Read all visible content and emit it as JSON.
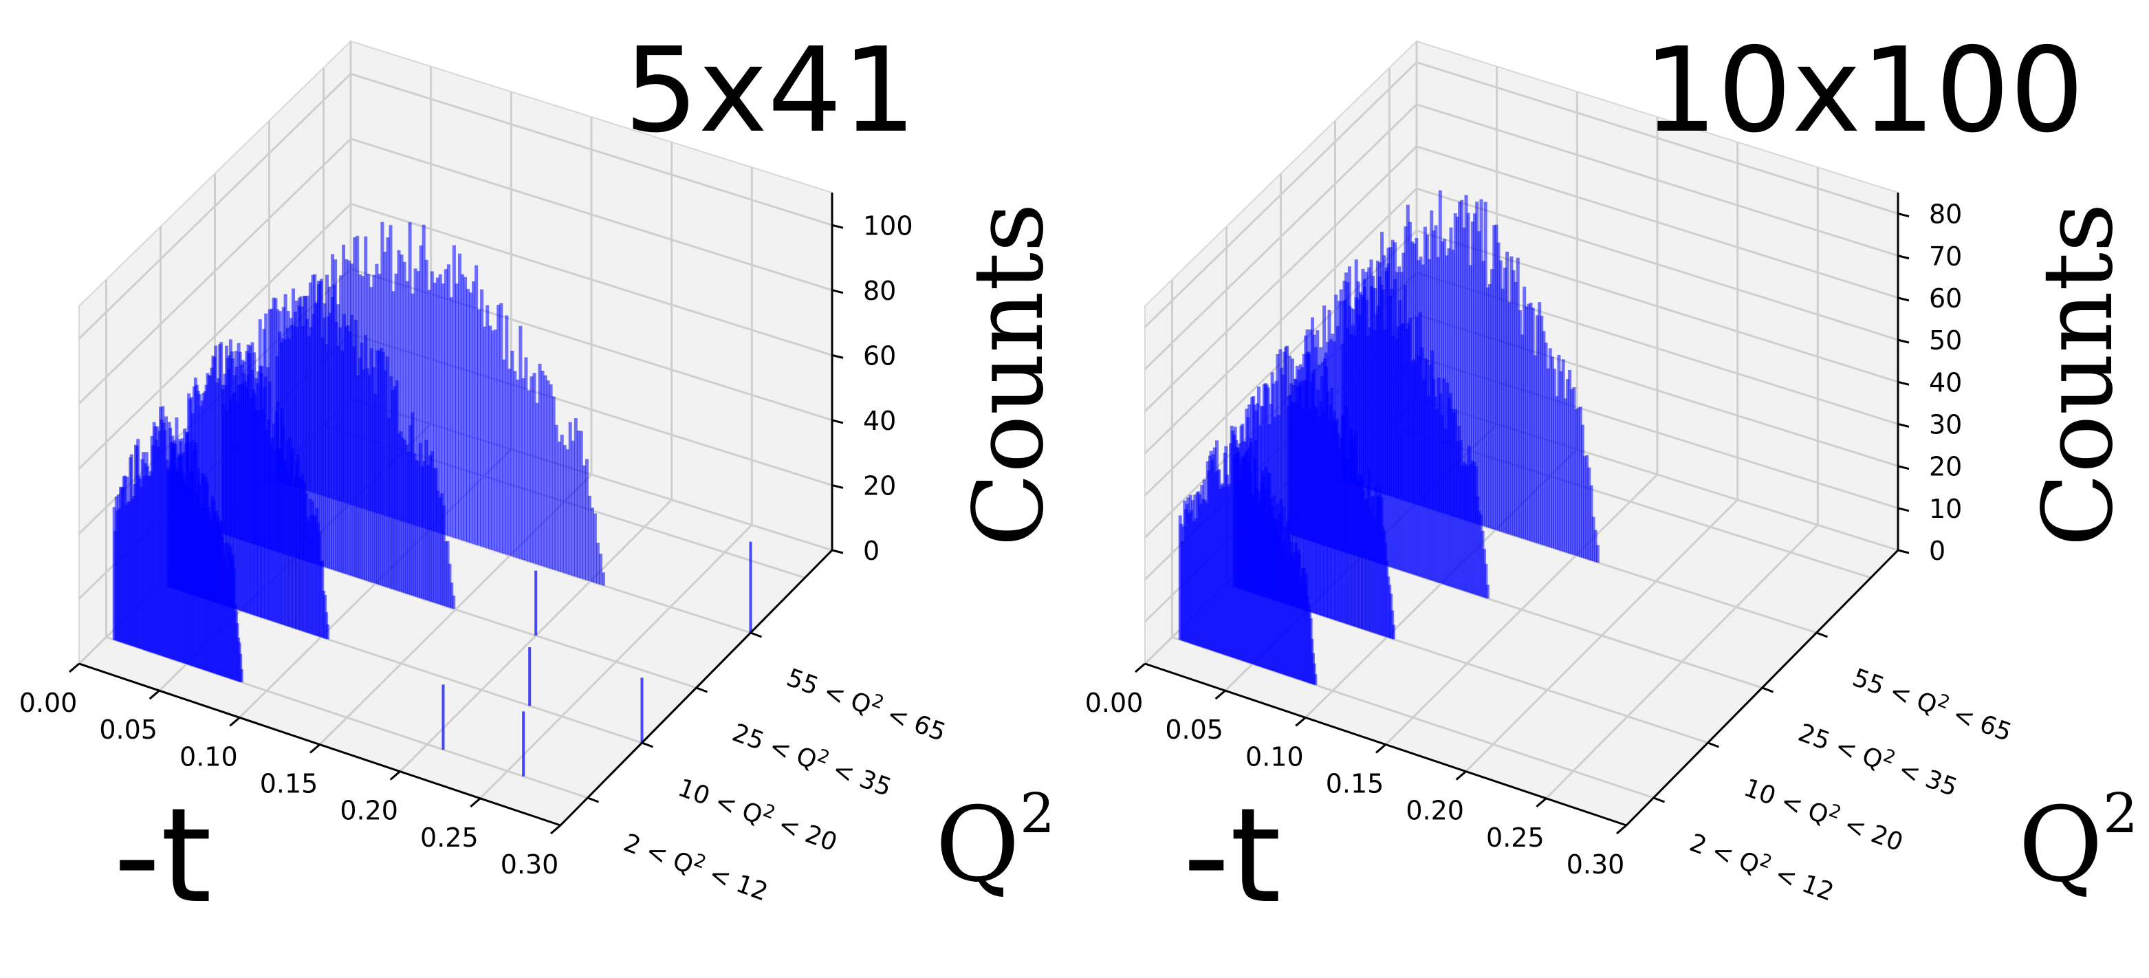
{
  "chart_data": [
    {
      "type": "bar3d",
      "title": "5x41",
      "xlabel": "-t",
      "ylabel": "Q",
      "ylabel_superscript": "2",
      "zlabel": "Counts",
      "x_ticks": [
        "0.00",
        "0.05",
        "0.10",
        "0.15",
        "0.20",
        "0.25",
        "0.30"
      ],
      "y_ticks": [
        {
          "base": "2 < Q",
          "sup": "2",
          "rest": " < 12"
        },
        {
          "base": "10 < Q",
          "sup": "2",
          "rest": " < 20"
        },
        {
          "base": "25 < Q",
          "sup": "2",
          "rest": " < 35"
        },
        {
          "base": "55 < Q",
          "sup": "2",
          "rest": " < 65"
        }
      ],
      "z_ticks": [
        "0",
        "20",
        "40",
        "60",
        "80",
        "100"
      ],
      "zlim": [
        0,
        110
      ],
      "xlim": [
        0,
        0.3
      ],
      "bar_color": "#0000ff",
      "series": [
        {
          "q2_bin": 0,
          "t_min": 0.005,
          "t_max": 0.085,
          "peak": 70
        },
        {
          "q2_bin": 1,
          "t_min": 0.005,
          "t_max": 0.105,
          "peak": 75
        },
        {
          "q2_bin": 2,
          "t_min": 0.005,
          "t_max": 0.15,
          "peak": 80
        },
        {
          "q2_bin": 3,
          "t_min": 0.005,
          "t_max": 0.21,
          "peak": 85
        }
      ],
      "outliers": [
        {
          "q2_bin": 0,
          "t": 0.21,
          "value": 20
        },
        {
          "q2_bin": 0,
          "t": 0.26,
          "value": 20
        },
        {
          "q2_bin": 1,
          "t": 0.23,
          "value": 18
        },
        {
          "q2_bin": 1,
          "t": 0.3,
          "value": 20
        },
        {
          "q2_bin": 2,
          "t": 0.2,
          "value": 20
        },
        {
          "q2_bin": 3,
          "t": 0.3,
          "value": 28
        }
      ]
    },
    {
      "type": "bar3d",
      "title": "10x100",
      "xlabel": "-t",
      "ylabel": "Q",
      "ylabel_superscript": "2",
      "zlabel": "Counts",
      "x_ticks": [
        "0.00",
        "0.05",
        "0.10",
        "0.15",
        "0.20",
        "0.25",
        "0.30"
      ],
      "y_ticks": [
        {
          "base": "2 < Q",
          "sup": "2",
          "rest": " < 12"
        },
        {
          "base": "10 < Q",
          "sup": "2",
          "rest": " < 20"
        },
        {
          "base": "25 < Q",
          "sup": "2",
          "rest": " < 35"
        },
        {
          "base": "55 < Q",
          "sup": "2",
          "rest": " < 65"
        }
      ],
      "z_ticks": [
        "0",
        "10",
        "20",
        "30",
        "40",
        "50",
        "60",
        "70",
        "80"
      ],
      "zlim": [
        0,
        85
      ],
      "xlim": [
        0,
        0.3
      ],
      "bar_color": "#0000ff",
      "series": [
        {
          "q2_bin": 0,
          "t_min": 0.005,
          "t_max": 0.09,
          "peak": 50
        },
        {
          "q2_bin": 1,
          "t_min": 0.005,
          "t_max": 0.105,
          "peak": 58
        },
        {
          "q2_bin": 2,
          "t_min": 0.005,
          "t_max": 0.13,
          "peak": 65
        },
        {
          "q2_bin": 3,
          "t_min": 0.005,
          "t_max": 0.165,
          "peak": 72
        }
      ],
      "outliers": []
    }
  ]
}
